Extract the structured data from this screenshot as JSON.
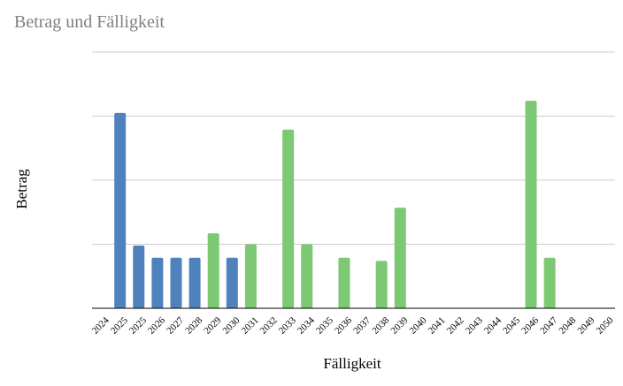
{
  "chart_data": {
    "type": "bar",
    "title": "Betrag und Fälligkeit",
    "xlabel": "Fälligkeit",
    "ylabel": "Betrag",
    "ylim": [
      0,
      4
    ],
    "grid": true,
    "y_tick_labels_visible": false,
    "colors": {
      "blue": "#4f81bd",
      "green": "#7dc873"
    },
    "bars": [
      {
        "category": "2024",
        "value": 0,
        "color": "blue"
      },
      {
        "category": "2025",
        "value": 3.05,
        "color": "blue"
      },
      {
        "category": "2025",
        "value": 0.98,
        "color": "blue"
      },
      {
        "category": "2026",
        "value": 0.79,
        "color": "blue"
      },
      {
        "category": "2027",
        "value": 0.79,
        "color": "blue"
      },
      {
        "category": "2028",
        "value": 0.79,
        "color": "blue"
      },
      {
        "category": "2029",
        "value": 1.17,
        "color": "green"
      },
      {
        "category": "2030",
        "value": 0.79,
        "color": "blue"
      },
      {
        "category": "2031",
        "value": 1.0,
        "color": "green"
      },
      {
        "category": "2032",
        "value": 0,
        "color": "green"
      },
      {
        "category": "2033",
        "value": 2.79,
        "color": "green"
      },
      {
        "category": "2034",
        "value": 1.0,
        "color": "green"
      },
      {
        "category": "2035",
        "value": 0,
        "color": "green"
      },
      {
        "category": "2036",
        "value": 0.79,
        "color": "green"
      },
      {
        "category": "2037",
        "value": 0,
        "color": "green"
      },
      {
        "category": "2038",
        "value": 0.74,
        "color": "green"
      },
      {
        "category": "2039",
        "value": 1.57,
        "color": "green"
      },
      {
        "category": "2040",
        "value": 0,
        "color": "green"
      },
      {
        "category": "2041",
        "value": 0,
        "color": "green"
      },
      {
        "category": "2042",
        "value": 0,
        "color": "green"
      },
      {
        "category": "2043",
        "value": 0,
        "color": "green"
      },
      {
        "category": "2044",
        "value": 0,
        "color": "green"
      },
      {
        "category": "2045",
        "value": 0,
        "color": "green"
      },
      {
        "category": "2046",
        "value": 3.24,
        "color": "green"
      },
      {
        "category": "2047",
        "value": 0.79,
        "color": "green"
      },
      {
        "category": "2048",
        "value": 0,
        "color": "green"
      },
      {
        "category": "2049",
        "value": 0,
        "color": "green"
      },
      {
        "category": "2050",
        "value": 0,
        "color": "green"
      }
    ]
  }
}
